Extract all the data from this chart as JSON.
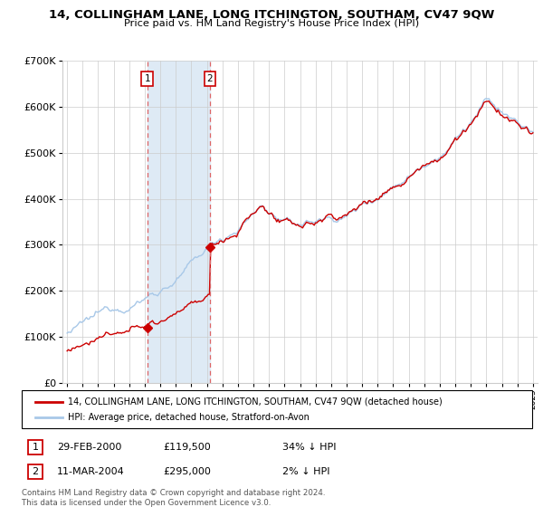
{
  "title": "14, COLLINGHAM LANE, LONG ITCHINGTON, SOUTHAM, CV47 9QW",
  "subtitle": "Price paid vs. HM Land Registry's House Price Index (HPI)",
  "legend_line1": "14, COLLINGHAM LANE, LONG ITCHINGTON, SOUTHAM, CV47 9QW (detached house)",
  "legend_line2": "HPI: Average price, detached house, Stratford-on-Avon",
  "transaction1_date": "29-FEB-2000",
  "transaction1_price": "£119,500",
  "transaction1_hpi": "34% ↓ HPI",
  "transaction2_date": "11-MAR-2004",
  "transaction2_price": "£295,000",
  "transaction2_hpi": "2% ↓ HPI",
  "transaction1_x": 2000.16,
  "transaction1_y": 119500,
  "transaction2_x": 2004.19,
  "transaction2_y": 295000,
  "vline1_x": 2000.16,
  "vline2_x": 2004.19,
  "shade_xmin": 2000.16,
  "shade_xmax": 2004.19,
  "ylim": [
    0,
    700000
  ],
  "xlim_left": 1994.7,
  "xlim_right": 2025.3,
  "hpi_color": "#a8c8e8",
  "price_color": "#cc0000",
  "vline_color": "#dd6666",
  "shade_color": "#deeaf5",
  "footer_line1": "Contains HM Land Registry data © Crown copyright and database right 2024.",
  "footer_line2": "This data is licensed under the Open Government Licence v3.0.",
  "ytick_labels": [
    "£0",
    "£100K",
    "£200K",
    "£300K",
    "£400K",
    "£500K",
    "£600K",
    "£700K"
  ],
  "ytick_vals": [
    0,
    100000,
    200000,
    300000,
    400000,
    500000,
    600000,
    700000
  ]
}
